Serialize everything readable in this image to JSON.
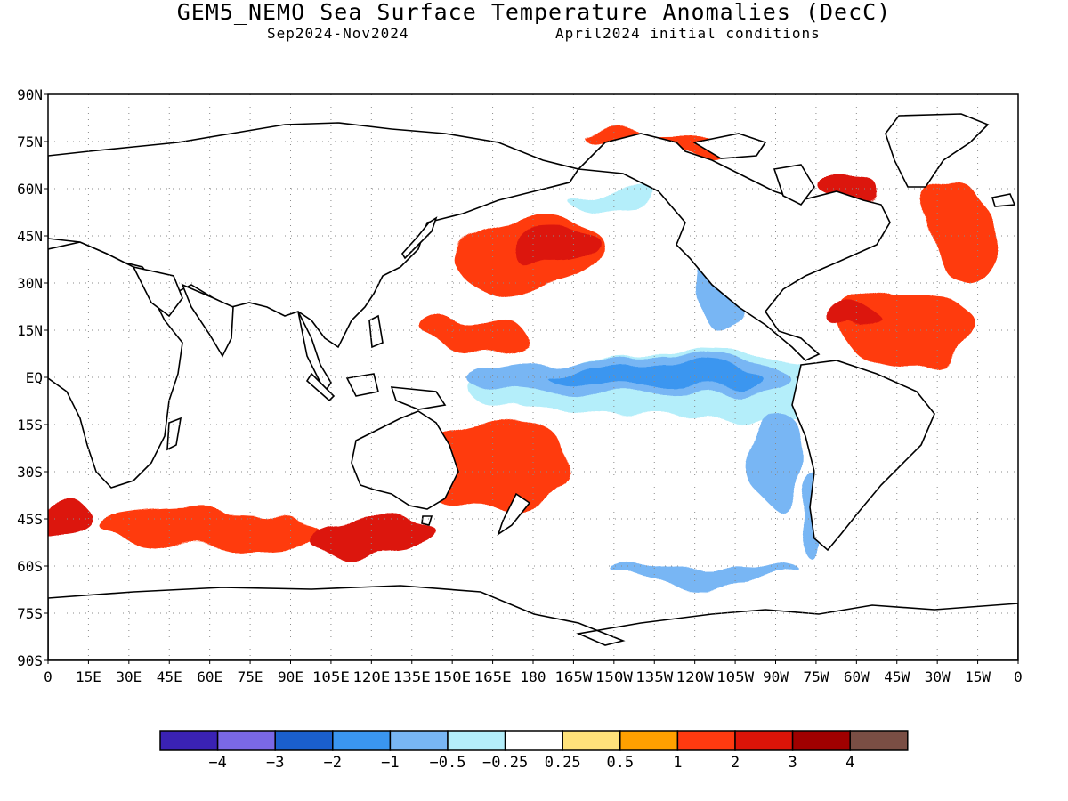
{
  "title": "GEM5_NEMO Sea Surface Temperature Anomalies (DecC)",
  "subtitle_left": "Sep2024-Nov2024",
  "subtitle_right": "April2024 initial conditions",
  "lat_labels": [
    "90N",
    "75N",
    "60N",
    "45N",
    "30N",
    "15N",
    "EQ",
    "15S",
    "30S",
    "45S",
    "60S",
    "75S",
    "90S"
  ],
  "lon_labels": [
    "0",
    "15E",
    "30E",
    "45E",
    "60E",
    "75E",
    "90E",
    "105E",
    "120E",
    "135E",
    "150E",
    "165E",
    "180",
    "165W",
    "150W",
    "135W",
    "120W",
    "105W",
    "90W",
    "75W",
    "60W",
    "45W",
    "30W",
    "15W",
    "0"
  ],
  "colorbar": {
    "colors": [
      "#3a22b4",
      "#7a68e6",
      "#1a5fcd",
      "#3a96f0",
      "#78b6f4",
      "#b4eefa",
      "#ffffff",
      "#ffe27a",
      "#ffa000",
      "#ff3a10",
      "#dc1408",
      "#a00000",
      "#7a4e44"
    ],
    "labels": [
      "-4",
      "-3",
      "-2",
      "-1",
      "-0.5",
      "-0.25",
      "0.25",
      "0.5",
      "1",
      "2",
      "3",
      "4"
    ]
  },
  "chart_data": {
    "type": "heatmap",
    "title": "GEM5_NEMO Sea Surface Temperature Anomalies (DecC)",
    "period": "Sep2024-Nov2024",
    "initial_conditions": "April2024 initial conditions",
    "xlabel": "",
    "ylabel": "",
    "xlim": [
      0,
      360
    ],
    "ylim": [
      -90,
      90
    ],
    "contour_levels": [
      -4,
      -3,
      -2,
      -1,
      -0.5,
      -0.25,
      0.25,
      0.5,
      1,
      2,
      3,
      4
    ],
    "grid": true,
    "legend": "bottom",
    "anomaly_regions": [
      {
        "lon": 225,
        "lat": 0,
        "rx": 40,
        "ry": 4,
        "value": -2
      },
      {
        "lon": 215,
        "lat": 0,
        "rx": 60,
        "ry": 7,
        "value": -1
      },
      {
        "lon": 230,
        "lat": -3,
        "rx": 75,
        "ry": 11,
        "value": -0.5
      },
      {
        "lon": 248,
        "lat": 30,
        "rx": 8,
        "ry": 14,
        "value": -1
      },
      {
        "lon": 210,
        "lat": 57,
        "rx": 18,
        "ry": 4,
        "value": -0.5
      },
      {
        "lon": 270,
        "lat": -25,
        "rx": 10,
        "ry": 15,
        "value": -1
      },
      {
        "lon": 285,
        "lat": -45,
        "rx": 5,
        "ry": 14,
        "value": -1
      },
      {
        "lon": 245,
        "lat": -62,
        "rx": 35,
        "ry": 3,
        "value": -1
      },
      {
        "lon": 190,
        "lat": 40,
        "rx": 18,
        "ry": 6,
        "value": 2
      },
      {
        "lon": 180,
        "lat": 38,
        "rx": 30,
        "ry": 12,
        "value": 1
      },
      {
        "lon": 160,
        "lat": 13,
        "rx": 18,
        "ry": 5,
        "value": 1
      },
      {
        "lon": 165,
        "lat": -28,
        "rx": 30,
        "ry": 15,
        "value": 1
      },
      {
        "lon": 120,
        "lat": -50,
        "rx": 25,
        "ry": 6,
        "value": 2
      },
      {
        "lon": 320,
        "lat": 15,
        "rx": 25,
        "ry": 12,
        "value": 1
      },
      {
        "lon": 300,
        "lat": 18,
        "rx": 10,
        "ry": 3,
        "value": 2
      },
      {
        "lon": 300,
        "lat": 58,
        "rx": 10,
        "ry": 5,
        "value": 2
      },
      {
        "lon": 340,
        "lat": 45,
        "rx": 12,
        "ry": 14,
        "value": 1
      },
      {
        "lon": 5,
        "lat": -45,
        "rx": 12,
        "ry": 5,
        "value": 2
      },
      {
        "lon": 60,
        "lat": -48,
        "rx": 40,
        "ry": 5,
        "value": 1
      },
      {
        "lon": 230,
        "lat": 75,
        "rx": 30,
        "ry": 3,
        "value": 1
      }
    ]
  }
}
